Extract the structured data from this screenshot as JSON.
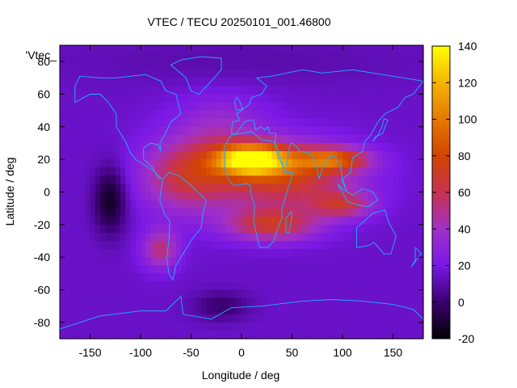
{
  "chart_data": {
    "type": "heatmap",
    "title": "VTEC / TECU 20250101_001.46800",
    "xlabel": "Longitude / deg",
    "ylabel": "Latitude / deg",
    "key_label": "'Vtec_",
    "xlim": [
      -180,
      180
    ],
    "ylim": [
      -90,
      90
    ],
    "x_ticks": [
      -150,
      -100,
      -50,
      0,
      50,
      100,
      150
    ],
    "y_ticks": [
      -80,
      -60,
      -40,
      -20,
      0,
      20,
      40,
      60,
      80
    ],
    "colorbar": {
      "range": [
        -20,
        140
      ],
      "ticks": [
        -20,
        0,
        20,
        40,
        60,
        80,
        100,
        120,
        140
      ],
      "palette": [
        "#000000",
        "#3a0070",
        "#7a18e6",
        "#a030c8",
        "#c83250",
        "#d24400",
        "#e67800",
        "#f5b400",
        "#ffff00"
      ]
    },
    "features": {
      "equatorial_crest_peak": {
        "lon": 10,
        "lat": 20,
        "value": 120
      },
      "southern_crest_peak": {
        "lon": 30,
        "lat": -20,
        "value": 80
      },
      "asia_crest_peak": {
        "lon": 90,
        "lat": 20,
        "value": 90
      },
      "pacific_minimum": {
        "lon": -130,
        "lat": -5,
        "value": -10
      },
      "antarctic_minimum": {
        "lon": -20,
        "lat": -70,
        "value": 0
      },
      "south_america_band": {
        "lon": -80,
        "lat": -35,
        "value": 55
      },
      "background": 15
    }
  }
}
